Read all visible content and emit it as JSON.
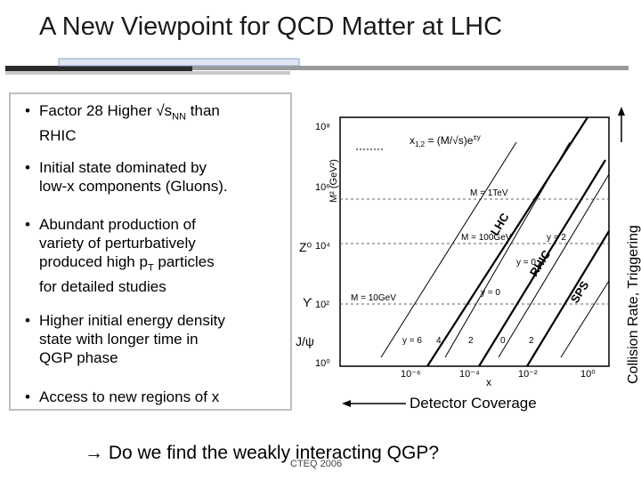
{
  "slide": {
    "title": "A New Viewpoint for QCD Matter at LHC"
  },
  "bullets": [
    {
      "lines": [
        "Factor 28 Higher √s",
        "NN",
        " than",
        "RHIC"
      ]
    },
    {
      "lines": [
        "Initial state dominated by",
        "low-x components (Gluons)."
      ]
    },
    {
      "lines": [
        "Abundant production of",
        "variety of perturbatively",
        "produced high p",
        "T",
        " particles",
        "for detailed studies"
      ]
    },
    {
      "lines": [
        "Higher initial energy density",
        "state with longer time in",
        "QGP phase"
      ]
    },
    {
      "lines": [
        "Access to new regions of x"
      ]
    }
  ],
  "plot_labels": {
    "formula": "x",
    "formula_sub": "1,2",
    "formula_rest": " = (M/√s)e",
    "formula_sup": "±y",
    "ylabel": "M² (GeV²)",
    "xlabel": "x",
    "yticks": [
      "10⁸",
      "10⁶",
      "10⁴",
      "10²",
      "10⁰"
    ],
    "xticks": [
      "10⁻⁶",
      "10⁻⁴",
      "10⁻²",
      "10⁰"
    ],
    "mass_lines": [
      "M = 1TeV",
      "M = 100GeV",
      "M = 10GeV"
    ],
    "experiments": [
      "LHC",
      "RHIC",
      "SPS"
    ],
    "rapidity": [
      "y = 2",
      "y = 0",
      "y = 0",
      "y = 6",
      "4",
      "2",
      "0",
      "2"
    ]
  },
  "side_labels": {
    "z0": "Z⁰",
    "upsilon": "ϒ",
    "jpsi": "J/ψ"
  },
  "arrows": {
    "vertical": "Collision Rate, Triggering",
    "horizontal": "Detector Coverage"
  },
  "footer": {
    "question": " Do we find the weakly interacting QGP?",
    "tag": "CTEQ 2006"
  }
}
